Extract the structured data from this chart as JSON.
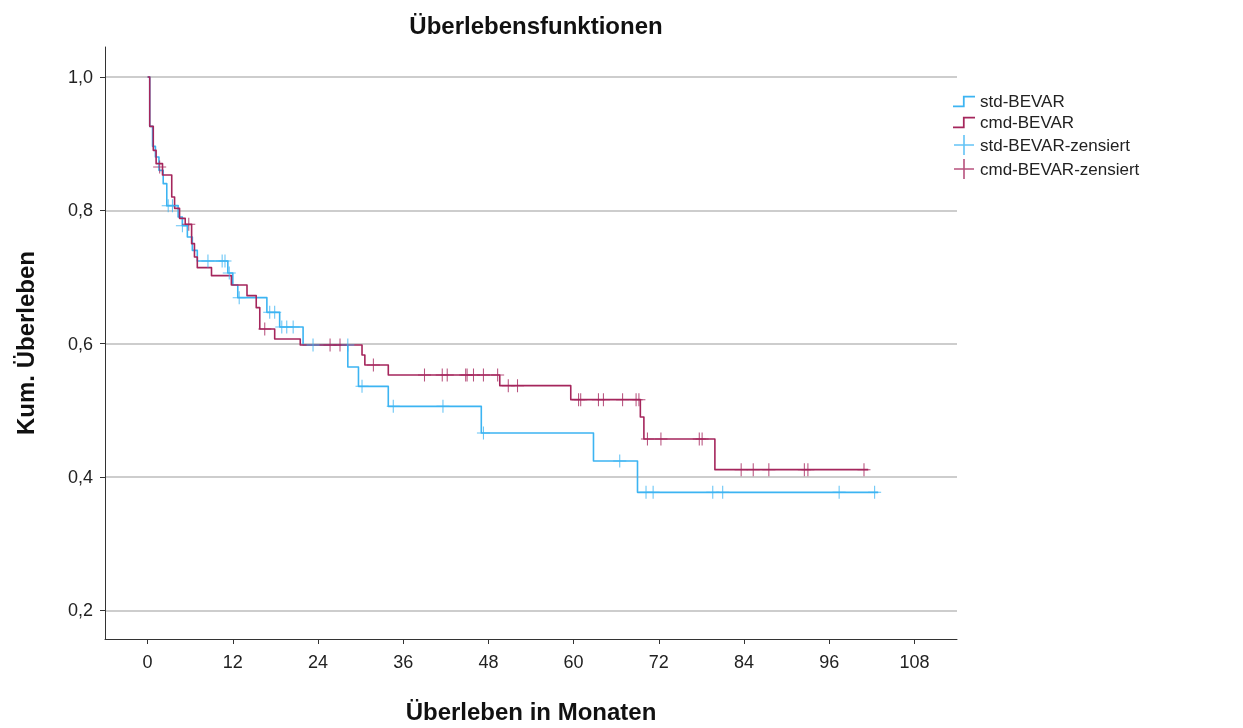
{
  "chart_data": {
    "type": "step",
    "title": "Überlebensfunktionen",
    "xlabel": "Überleben in Monaten",
    "ylabel": "Kum. Überleben",
    "xlim": [
      -6,
      114
    ],
    "xticks": [
      0,
      12,
      24,
      36,
      48,
      60,
      72,
      84,
      96,
      108
    ],
    "ylim": [
      0.157,
      1.045
    ],
    "yticks": [
      {
        "value": 0.2,
        "label": "0,2"
      },
      {
        "value": 0.4,
        "label": "0,4"
      },
      {
        "value": 0.6,
        "label": "0,6"
      },
      {
        "value": 0.8,
        "label": "0,8"
      },
      {
        "value": 1.0,
        "label": "1,0"
      }
    ],
    "grid": "y",
    "legend": "top right",
    "marker": "none",
    "line_style": "solid",
    "series": [
      {
        "name": "std-BEVAR",
        "color": "#3cb4f2",
        "x": [
          0,
          0.3,
          0.7,
          1.1,
          1.6,
          2.2,
          2.7,
          4.3,
          4.9,
          5.6,
          6.3,
          7,
          11.3,
          12,
          12.7,
          16.8,
          18.6,
          21.9,
          28.2,
          29.7,
          33.9,
          47,
          62.8,
          69,
          102.9
        ],
        "values": [
          1.0,
          0.926,
          0.896,
          0.88,
          0.86,
          0.84,
          0.807,
          0.79,
          0.777,
          0.76,
          0.74,
          0.724,
          0.706,
          0.688,
          0.669,
          0.647,
          0.625,
          0.598,
          0.565,
          0.536,
          0.506,
          0.466,
          0.424,
          0.377,
          0.377
        ]
      },
      {
        "name": "cmd-BEVAR",
        "color": "#a5265c",
        "x": [
          0,
          0.3,
          0.8,
          1.2,
          2.1,
          3.4,
          3.8,
          4.5,
          5.3,
          6.2,
          6.6,
          7,
          9,
          11.8,
          14,
          15.3,
          15.8,
          17.9,
          21.5,
          30.2,
          30.6,
          33.9,
          49.6,
          59.6,
          69.4,
          69.9,
          79.9,
          101.5
        ],
        "values": [
          1.0,
          0.926,
          0.89,
          0.87,
          0.853,
          0.82,
          0.803,
          0.788,
          0.779,
          0.75,
          0.73,
          0.714,
          0.702,
          0.688,
          0.672,
          0.654,
          0.622,
          0.607,
          0.598,
          0.583,
          0.568,
          0.553,
          0.537,
          0.516,
          0.49,
          0.457,
          0.411,
          0.411
        ]
      },
      {
        "name": "std-BEVAR-zensiert",
        "type": "scatter",
        "marker": "cross",
        "color": "#3cb4f2",
        "x": [
          2.9,
          3.5,
          4.9,
          8.5,
          10.5,
          10.9,
          11.5,
          12.9,
          17.2,
          17.9,
          18.9,
          19.6,
          20.5,
          23.3,
          28.2,
          30.2,
          34.6,
          41.6,
          47.3,
          66.5,
          70.2,
          71.2,
          79.6,
          81,
          97.4,
          102.4
        ],
        "values": [
          0.807,
          0.807,
          0.777,
          0.724,
          0.724,
          0.724,
          0.706,
          0.669,
          0.647,
          0.647,
          0.625,
          0.625,
          0.625,
          0.598,
          0.598,
          0.536,
          0.506,
          0.506,
          0.466,
          0.424,
          0.377,
          0.377,
          0.377,
          0.377,
          0.377,
          0.377
        ]
      },
      {
        "name": "cmd-BEVAR-zensiert",
        "type": "scatter",
        "marker": "cross",
        "color": "#a5265c",
        "x": [
          1.7,
          5.8,
          16.5,
          25.7,
          27.1,
          31.8,
          39,
          41.5,
          42.2,
          44.8,
          45,
          45.9,
          47.3,
          49.3,
          50.8,
          52.1,
          60.7,
          61,
          63.5,
          64.2,
          66.9,
          68.8,
          69.2,
          70.4,
          72.3,
          77.7,
          78.1,
          83.6,
          85.3,
          87.5,
          92.5,
          93,
          100.9
        ],
        "values": [
          0.865,
          0.779,
          0.622,
          0.598,
          0.598,
          0.568,
          0.553,
          0.553,
          0.553,
          0.553,
          0.553,
          0.553,
          0.553,
          0.553,
          0.537,
          0.537,
          0.516,
          0.516,
          0.516,
          0.516,
          0.516,
          0.516,
          0.516,
          0.457,
          0.457,
          0.457,
          0.457,
          0.411,
          0.411,
          0.411,
          0.411,
          0.411,
          0.411
        ]
      }
    ]
  }
}
